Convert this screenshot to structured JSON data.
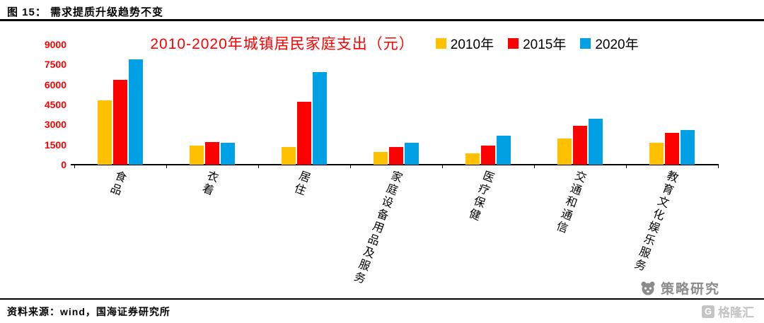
{
  "header": {
    "title": "图 15： 需求提质升级趋势不变"
  },
  "chart_data": {
    "type": "bar",
    "title": "2010-2020年城镇居民家庭支出（元）",
    "categories": [
      "食品",
      "衣着",
      "居住",
      "家庭设备用品及服务",
      "医疗保健",
      "交通和通信",
      "教育文化娱乐服务"
    ],
    "series": [
      {
        "name": "2010年",
        "color": "#FFC000",
        "values": [
          4800,
          1450,
          1330,
          950,
          870,
          1980,
          1630
        ]
      },
      {
        "name": "2015年",
        "color": "#FF0000",
        "values": [
          6360,
          1700,
          4730,
          1310,
          1440,
          2900,
          2380
        ]
      },
      {
        "name": "2020年",
        "color": "#00A0E5",
        "values": [
          7880,
          1650,
          6960,
          1650,
          2170,
          3450,
          2590
        ]
      }
    ],
    "ylim": [
      0,
      9000
    ],
    "yticks": [
      0,
      1500,
      3000,
      4500,
      6000,
      7500,
      9000
    ],
    "grid": false,
    "legend_position": "top-right",
    "axis_label_color": "#FF0000",
    "title_color": "#FF0000"
  },
  "footer": {
    "source": "资料来源：wind，国海证券研究所"
  },
  "watermarks": {
    "brand": "策略研究",
    "platform": "格隆汇",
    "platform_logo_letter": "G"
  }
}
